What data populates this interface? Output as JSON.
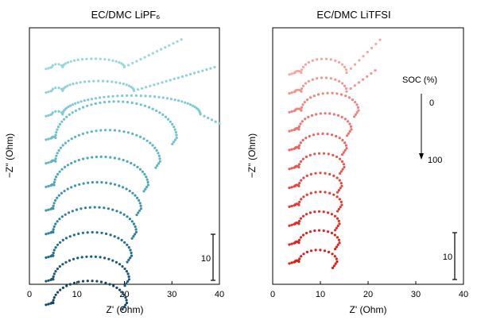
{
  "chart_data": [
    {
      "type": "scatter",
      "title": "EC/DMC LiPF₆",
      "xlabel": "Z' (Ohm)",
      "ylabel": "−Z'' (Ohm)",
      "xlim": [
        0,
        40
      ],
      "x_ticks": [
        "0",
        "10",
        "20",
        "30",
        "40"
      ],
      "scale_bar": {
        "label": "10",
        "value": 10
      },
      "series": [
        {
          "name": "curve 1",
          "color": "#9ad9d9",
          "hf_end": 7,
          "semicircle_end": 20,
          "tail_end": 32,
          "tail_slope": 0.5
        },
        {
          "name": "curve 2",
          "color": "#8fd3d6",
          "hf_end": 7,
          "semicircle_end": 22,
          "tail_end": 39,
          "tail_slope": 0.3
        },
        {
          "name": "curve 3",
          "color": "#80cbd3",
          "hf_end": 7,
          "semicircle_end": 36,
          "tail_end": 40,
          "tail_slope": -0.5
        },
        {
          "name": "curve 4",
          "color": "#6fc2cf",
          "hf_end": 5.5,
          "semicircle_end": 31,
          "tail_end": 31,
          "tail_slope": 0
        },
        {
          "name": "curve 5",
          "color": "#5fb6c9",
          "hf_end": 5.5,
          "semicircle_end": 27.5,
          "tail_end": 27.5,
          "tail_slope": 0
        },
        {
          "name": "curve 6",
          "color": "#4fa8c0",
          "hf_end": 5.2,
          "semicircle_end": 25,
          "tail_end": 25,
          "tail_slope": 0
        },
        {
          "name": "curve 7",
          "color": "#3f96b2",
          "hf_end": 5,
          "semicircle_end": 23.5,
          "tail_end": 23.5,
          "tail_slope": 0
        },
        {
          "name": "curve 8",
          "color": "#2f82a0",
          "hf_end": 5,
          "semicircle_end": 22.5,
          "tail_end": 22.5,
          "tail_slope": 0
        },
        {
          "name": "curve 9",
          "color": "#236e8c",
          "hf_end": 5,
          "semicircle_end": 21.5,
          "tail_end": 21.5,
          "tail_slope": 0
        },
        {
          "name": "curve 10",
          "color": "#1a5c78",
          "hf_end": 5,
          "semicircle_end": 21,
          "tail_end": 21,
          "tail_slope": 0
        },
        {
          "name": "curve 11",
          "color": "#124a66",
          "hf_end": 5,
          "semicircle_end": 20.5,
          "tail_end": 20.5,
          "tail_slope": 0
        }
      ]
    },
    {
      "type": "scatter",
      "title": "EC/DMC LiTFSI",
      "xlabel": "Z' (Ohm)",
      "ylabel": "−Z'' (Ohm)",
      "xlim": [
        0,
        40
      ],
      "x_ticks": [
        "0",
        "10",
        "20",
        "30",
        "40"
      ],
      "scale_bar": {
        "label": "10",
        "value": 10
      },
      "soc_annotation": {
        "label": "SOC (%)",
        "start": "0",
        "end": "100"
      },
      "series": [
        {
          "name": "curve 1",
          "color": "#f4a6a2",
          "hf_end": 6,
          "semicircle_end": 15.5,
          "tail_end": 22.5,
          "tail_slope": 1.0
        },
        {
          "name": "curve 2",
          "color": "#f29590",
          "hf_end": 6,
          "semicircle_end": 15.5,
          "tail_end": 21.5,
          "tail_slope": 0.75
        },
        {
          "name": "curve 3",
          "color": "#f08580",
          "hf_end": 6,
          "semicircle_end": 18,
          "tail_end": 18,
          "tail_slope": 0
        },
        {
          "name": "curve 4",
          "color": "#ee7570",
          "hf_end": 5.5,
          "semicircle_end": 16.5,
          "tail_end": 16.5,
          "tail_slope": 0
        },
        {
          "name": "curve 5",
          "color": "#ec6560",
          "hf_end": 5.5,
          "semicircle_end": 15.5,
          "tail_end": 15.5,
          "tail_slope": 0
        },
        {
          "name": "curve 6",
          "color": "#ea5650",
          "hf_end": 5.5,
          "semicircle_end": 15,
          "tail_end": 15,
          "tail_slope": 0
        },
        {
          "name": "curve 7",
          "color": "#e84740",
          "hf_end": 5.5,
          "semicircle_end": 14.5,
          "tail_end": 14.5,
          "tail_slope": 0
        },
        {
          "name": "curve 8",
          "color": "#e63a33",
          "hf_end": 5.5,
          "semicircle_end": 14.5,
          "tail_end": 14.5,
          "tail_slope": 0
        },
        {
          "name": "curve 9",
          "color": "#e42e27",
          "hf_end": 5.5,
          "semicircle_end": 14,
          "tail_end": 14,
          "tail_slope": 0
        },
        {
          "name": "curve 10",
          "color": "#e2241d",
          "hf_end": 5.5,
          "semicircle_end": 14,
          "tail_end": 14,
          "tail_slope": 0
        },
        {
          "name": "curve 11",
          "color": "#e01a14",
          "hf_end": 5.5,
          "semicircle_end": 13.5,
          "tail_end": 13.5,
          "tail_slope": 0
        }
      ]
    }
  ]
}
